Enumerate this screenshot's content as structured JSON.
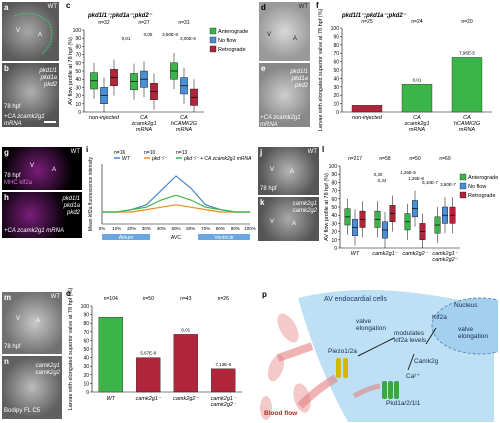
{
  "panels": {
    "a": {
      "letter": "a",
      "tag": "WT",
      "labels": [
        "V",
        "A"
      ]
    },
    "b": {
      "letter": "b",
      "genotype": [
        "pkd1l1",
        "pkd1a",
        "pkd2"
      ],
      "extra": "+CA zcamk2g1 mRNA",
      "time": "78 hpf"
    },
    "c": {
      "letter": "c",
      "title": "pkd1l1⁻;pkd1a⁻;pkd2⁻",
      "ylabel": "AV flow profile at 78 hpf (%)",
      "ns": [
        "n=32",
        "n=27",
        "n=31"
      ],
      "groups": [
        "non-injected",
        "CA zcamk2g1 mRNA",
        "CA hCAMK2G mRNA"
      ],
      "pvals": [
        "0,01",
        "0,05",
        "3,50E-9",
        "2,00E-5"
      ],
      "legend": [
        "Anterograde",
        "No flow",
        "Retrograde"
      ],
      "colors": {
        "antero": "#3bb54a",
        "noflow": "#4c8fd6",
        "retro": "#b0253a"
      }
    },
    "d": {
      "letter": "d",
      "tag": "WT",
      "labels": [
        "V",
        "A"
      ]
    },
    "e": {
      "letter": "e",
      "genotype": [
        "pkd1l1",
        "pkd1a",
        "pkd2"
      ],
      "extra": "+CA zcamk2g1 mRNA"
    },
    "f": {
      "letter": "f",
      "title": "pkd1l1⁻;pkd1a⁻;pkd2⁻",
      "ylabel": "Larvae with elongated superior valve at 78 hpf (%)",
      "ns": [
        "n=25",
        "n=24",
        "n=20"
      ],
      "groups": [
        "non-injected",
        "CA zcamk2g1 mRNA",
        "CA hCAMK2G mRNA"
      ],
      "pvals": [
        "0,01",
        "7,96E-5"
      ]
    },
    "g": {
      "letter": "g",
      "tag": "WT",
      "labels": [
        "V",
        "A"
      ],
      "time": "78 hpf",
      "marker": "MHC klf2a"
    },
    "h": {
      "letter": "h",
      "genotype": [
        "pkd1l1",
        "pkd1a",
        "pkd2"
      ],
      "extra": "+CA zcamk2g1 mRNA"
    },
    "i": {
      "letter": "i",
      "ylabel": "Mean klf2a fluorescence intensity",
      "ns": [
        "n=16",
        "n=10",
        "n=13"
      ],
      "legend": [
        "WT",
        "pkd⁻/⁻",
        "pkd⁻/⁻ + CA zcamk2g1 mRNA"
      ],
      "xticks": [
        "0%",
        "10%",
        "20%",
        "30%",
        "40%",
        "50%",
        "60%",
        "70%",
        "80%",
        "90%",
        "100%"
      ],
      "regions": [
        "Atrium",
        "AVC",
        "Ventricle"
      ]
    },
    "j": {
      "letter": "j",
      "tag": "WT",
      "labels": [
        "V",
        "A"
      ],
      "time": "78 hpf"
    },
    "k": {
      "letter": "k",
      "genotype": [
        "camk2g1",
        "camk2g2"
      ],
      "labels": [
        "V",
        "A"
      ]
    },
    "l": {
      "letter": "l",
      "ylabel": "AV flow profile at 78 hpf (%)",
      "ns": [
        "n=217",
        "n=58",
        "n=50",
        "n=69"
      ],
      "groups": [
        "WT",
        "camk2g1⁻",
        "camk2g2⁻",
        "camk2g1⁻ camk2g2⁻"
      ],
      "pvals": [
        "0,30",
        "0,34",
        "1,26E-5",
        "1,26E-8",
        "5,10E-7",
        "3,60E-7"
      ],
      "legend": [
        "Anterograde",
        "No flow",
        "Retrograde"
      ]
    },
    "m": {
      "letter": "m",
      "tag": "WT",
      "labels": [
        "V",
        "A"
      ],
      "time": "78 hpf"
    },
    "n": {
      "letter": "n",
      "genotype": [
        "camk2g1",
        "camk2g2"
      ],
      "stain": "Bodipy FL C5"
    },
    "o": {
      "letter": "o",
      "ylabel": "Larvae with elongated superior valve at 78 hpf (%)",
      "ns": [
        "n=104",
        "n=50",
        "n=43",
        "n=26"
      ],
      "groups": [
        "WT",
        "camk2g1⁻",
        "camk2g2⁻",
        "camk2g1⁻ camk2g2⁻"
      ],
      "pvals": [
        "5,67E-8",
        "0,01",
        "7,13E-6"
      ]
    },
    "p": {
      "letter": "p",
      "title": "AV endocardial cells",
      "nucleus": "Nucleus",
      "labels": {
        "klf2a": "Klf2a",
        "valve_nuc": "valve elongation",
        "valve_cyto": "valve elongation",
        "modulates": "modulates klf2a levels",
        "camk2g": "Camk2g",
        "ca": "Ca²⁺",
        "pkd": "Pkd1a/2/1l1",
        "piezo": "Piezo1/2a",
        "flow": "Blood flow"
      }
    }
  },
  "chart_data": [
    {
      "type": "box",
      "panel": "c",
      "categories": [
        "non-injected",
        "CA zcamk2g1 mRNA",
        "CA hCAMK2G mRNA"
      ],
      "series": [
        {
          "name": "Anterograde",
          "median": [
            38,
            37,
            50
          ]
        },
        {
          "name": "No flow",
          "median": [
            20,
            40,
            32
          ]
        },
        {
          "name": "Retrograde",
          "median": [
            42,
            25,
            18
          ]
        }
      ],
      "ylim": [
        0,
        100
      ]
    },
    {
      "type": "bar",
      "panel": "f",
      "categories": [
        "non-injected",
        "CA zcamk2g1 mRNA",
        "CA hCAMK2G mRNA"
      ],
      "values": [
        8,
        33,
        65
      ],
      "ylim": [
        0,
        100
      ]
    },
    {
      "type": "line",
      "panel": "i",
      "x": [
        0,
        10,
        20,
        30,
        40,
        50,
        60,
        70,
        80,
        90,
        100
      ],
      "series": [
        {
          "name": "WT",
          "values": [
            5,
            5,
            6,
            8,
            14,
            20,
            15,
            8,
            6,
            5,
            5
          ]
        },
        {
          "name": "pkd⁻/⁻",
          "values": [
            5,
            5,
            5,
            6,
            7,
            8,
            7,
            6,
            5,
            5,
            5
          ]
        },
        {
          "name": "pkd⁻/⁻ + CA zcamk2g1 mRNA",
          "values": [
            5,
            5,
            6,
            7,
            10,
            12,
            10,
            7,
            6,
            5,
            5
          ]
        }
      ],
      "ylim": [
        0,
        25
      ]
    },
    {
      "type": "box",
      "panel": "l",
      "categories": [
        "WT",
        "camk2g1⁻",
        "camk2g2⁻",
        "camk2g1⁻ camk2g2⁻"
      ],
      "series": [
        {
          "name": "Anterograde",
          "median": [
            38,
            35,
            32,
            28
          ]
        },
        {
          "name": "No flow",
          "median": [
            25,
            22,
            48,
            40
          ]
        },
        {
          "name": "Retrograde",
          "median": [
            35,
            42,
            20,
            40
          ]
        }
      ],
      "ylim": [
        0,
        100
      ]
    },
    {
      "type": "bar",
      "panel": "o",
      "categories": [
        "WT",
        "camk2g1⁻",
        "camk2g2⁻",
        "camk2g1⁻ camk2g2⁻"
      ],
      "values": [
        87,
        40,
        67,
        27
      ],
      "ylim": [
        0,
        100
      ]
    }
  ]
}
